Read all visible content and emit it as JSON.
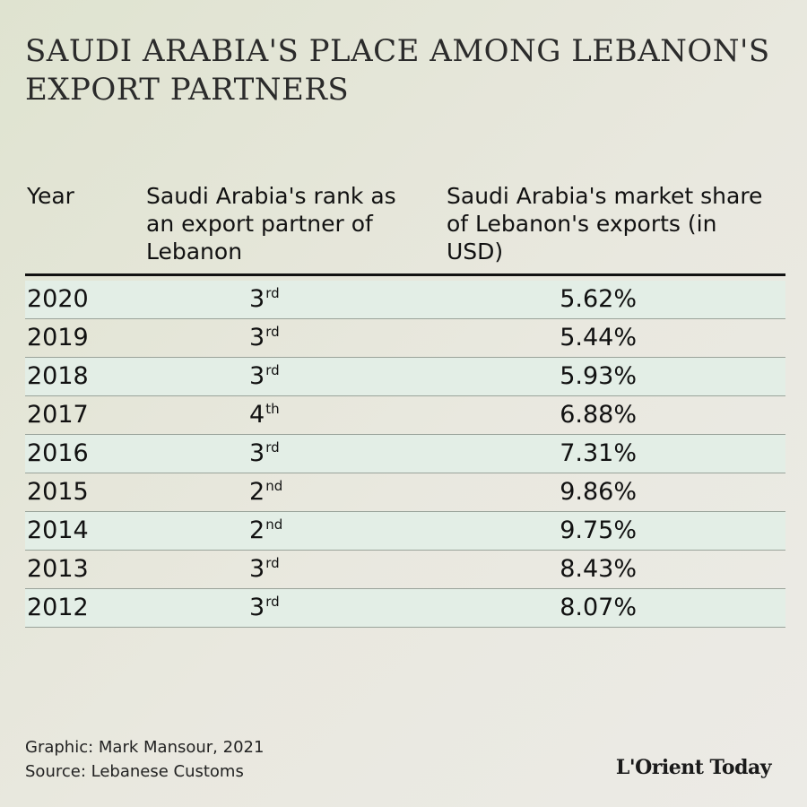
{
  "title": "SAUDI ARABIA'S PLACE AMONG LEBANON'S EXPORT PARTNERS",
  "chart_data": {
    "type": "table",
    "columns": [
      "Year",
      "Saudi Arabia's rank as an export partner of Lebanon",
      "Saudi Arabia's market share of Lebanon's exports (in USD)"
    ],
    "rows": [
      {
        "year": "2020",
        "rank": "3",
        "suffix": "rd",
        "share": "5.62%"
      },
      {
        "year": "2019",
        "rank": "3",
        "suffix": "rd",
        "share": "5.44%"
      },
      {
        "year": "2018",
        "rank": "3",
        "suffix": "rd",
        "share": "5.93%"
      },
      {
        "year": "2017",
        "rank": "4",
        "suffix": "th",
        "share": "6.88%"
      },
      {
        "year": "2016",
        "rank": "3",
        "suffix": "rd",
        "share": "7.31%"
      },
      {
        "year": "2015",
        "rank": "2",
        "suffix": "nd",
        "share": "9.86%"
      },
      {
        "year": "2014",
        "rank": "2",
        "suffix": "nd",
        "share": "9.75%"
      },
      {
        "year": "2013",
        "rank": "3",
        "suffix": "rd",
        "share": "8.43%"
      },
      {
        "year": "2012",
        "rank": "3",
        "suffix": "rd",
        "share": "8.07%"
      }
    ]
  },
  "credits": {
    "graphic": "Graphic: Mark Mansour, 2021",
    "source": "Source: Lebanese Customs"
  },
  "logo": "L'Orient Today",
  "colors": {
    "row_shade": "#e3eee6",
    "rule": "#111111"
  }
}
